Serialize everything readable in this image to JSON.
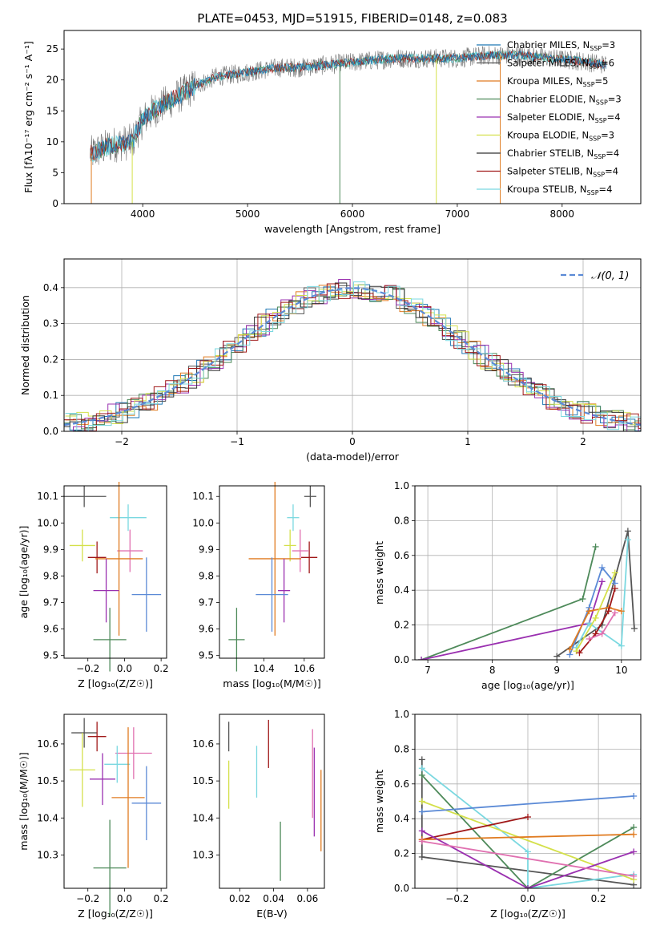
{
  "figure": {
    "title": "PLATE=0453, MJD=51915, FIBERID=0148, z=0.083"
  },
  "chart_data": [
    {
      "id": "spectrum",
      "type": "line",
      "xlabel": "wavelength [Angstrom, rest frame]",
      "ylabel": "Flux [fλ10⁻¹⁷ erg cm⁻² s⁻¹ A⁻¹]",
      "xlim": [
        3250,
        8750
      ],
      "ylim": [
        0,
        28
      ],
      "xticks": [
        4000,
        5000,
        6000,
        7000,
        8000
      ],
      "yticks": [
        0,
        5,
        10,
        15,
        20,
        25
      ],
      "grid": false,
      "legend_position": "top-right",
      "series": [
        {
          "name": "Chabrier MILES, N_SSP=3",
          "color": "#1f77b4"
        },
        {
          "name": "Salpeter MILES, N_SSP=6",
          "color": "#555555"
        },
        {
          "name": "Kroupa MILES, N_SSP=5",
          "color": "#e07b20"
        },
        {
          "name": "Chabrier ELODIE, N_SSP=3",
          "color": "#4e8a5a"
        },
        {
          "name": "Salpeter ELODIE, N_SSP=4",
          "color": "#9a30b0"
        },
        {
          "name": "Kroupa ELODIE, N_SSP=3",
          "color": "#d4e04a"
        },
        {
          "name": "Chabrier STELIB, N_SSP=4",
          "color": "#333333"
        },
        {
          "name": "Salpeter STELIB, N_SSP=4",
          "color": "#a01818"
        },
        {
          "name": "Kroupa STELIB, N_SSP=4",
          "color": "#7ad8e0"
        }
      ],
      "continuum": {
        "x": [
          3500,
          3700,
          3900,
          4000,
          4100,
          4300,
          4500,
          4700,
          4900,
          5100,
          5300,
          5500,
          5800,
          6100,
          6400,
          6700,
          7000,
          7300,
          7600,
          7900,
          8200,
          8400
        ],
        "y": [
          8,
          9.5,
          10,
          13.5,
          15,
          17,
          19,
          20.5,
          21,
          21.5,
          22,
          22,
          22.5,
          23,
          23.5,
          23.5,
          23.5,
          24,
          24,
          23.5,
          23,
          22.5
        ]
      }
    },
    {
      "id": "residuals",
      "type": "histogram",
      "xlabel": "(data-model)/error",
      "ylabel": "Normed distribution",
      "xlim": [
        -2.5,
        2.5
      ],
      "ylim": [
        0,
        0.48
      ],
      "xticks": [
        -2,
        -1,
        0,
        1,
        2
      ],
      "yticks": [
        0.0,
        0.1,
        0.2,
        0.3,
        0.4
      ],
      "grid": true,
      "legend": "𝒩(0, 1)",
      "legend_position": "top-right",
      "bin_width": 0.1,
      "reference_curve": {
        "name": "𝒩(0, 1)",
        "mean": 0,
        "sigma": 1,
        "color": "#5b8ad6"
      }
    },
    {
      "id": "age-vs-Z",
      "type": "scatter",
      "xlabel": "Z [log₁₀(Z/Z☉)]",
      "ylabel": "age  [log₁₀(age/yr)]",
      "xlim": [
        -0.33,
        0.23
      ],
      "ylim": [
        9.49,
        10.14
      ],
      "xticks": [
        -0.2,
        0.0,
        0.2
      ],
      "yticks": [
        9.5,
        9.6,
        9.7,
        9.8,
        9.9,
        10.0,
        10.1
      ],
      "points": [
        {
          "x": -0.22,
          "y": 10.1,
          "xerr": 0.12,
          "yerr": 0.04,
          "color": "#555555"
        },
        {
          "x": 0.02,
          "y": 10.02,
          "xerr": 0.1,
          "yerr": 0.05,
          "color": "#7ad8e0"
        },
        {
          "x": -0.23,
          "y": 9.915,
          "xerr": 0.07,
          "yerr": 0.06,
          "color": "#d4e04a"
        },
        {
          "x": 0.03,
          "y": 9.895,
          "xerr": 0.07,
          "yerr": 0.08,
          "color": "#e070b0"
        },
        {
          "x": -0.15,
          "y": 9.87,
          "xerr": 0.05,
          "yerr": 0.06,
          "color": "#a01818"
        },
        {
          "x": -0.03,
          "y": 9.865,
          "xerr": 0.13,
          "yerr": 0.29,
          "color": "#e07b20"
        },
        {
          "x": -0.1,
          "y": 9.745,
          "xerr": 0.07,
          "yerr": 0.12,
          "color": "#9a30b0"
        },
        {
          "x": 0.12,
          "y": 9.73,
          "xerr": 0.08,
          "yerr": 0.14,
          "color": "#5b8ad6"
        },
        {
          "x": -0.08,
          "y": 9.56,
          "xerr": 0.09,
          "yerr": 0.12,
          "color": "#4e8a5a"
        }
      ]
    },
    {
      "id": "age-vs-mass",
      "type": "scatter",
      "xlabel": "mass [log₁₀(M/M☉)]",
      "ylabel": "",
      "xlim": [
        10.18,
        10.7
      ],
      "ylim": [
        9.49,
        10.14
      ],
      "xticks": [
        10.4,
        10.6
      ],
      "yticks": [
        9.5,
        9.6,
        9.7,
        9.8,
        9.9,
        10.0,
        10.1
      ],
      "points": [
        {
          "x": 10.63,
          "y": 10.1,
          "xerr": 0.03,
          "yerr": 0.04,
          "color": "#555555"
        },
        {
          "x": 10.545,
          "y": 10.02,
          "xerr": 0.03,
          "yerr": 0.05,
          "color": "#7ad8e0"
        },
        {
          "x": 10.53,
          "y": 9.915,
          "xerr": 0.03,
          "yerr": 0.06,
          "color": "#d4e04a"
        },
        {
          "x": 10.58,
          "y": 9.895,
          "xerr": 0.04,
          "yerr": 0.08,
          "color": "#e070b0"
        },
        {
          "x": 10.625,
          "y": 9.87,
          "xerr": 0.04,
          "yerr": 0.06,
          "color": "#a01818"
        },
        {
          "x": 10.455,
          "y": 9.865,
          "xerr": 0.13,
          "yerr": 0.29,
          "color": "#e07b20"
        },
        {
          "x": 10.5,
          "y": 9.745,
          "xerr": 0.03,
          "yerr": 0.12,
          "color": "#9a30b0"
        },
        {
          "x": 10.44,
          "y": 9.73,
          "xerr": 0.08,
          "yerr": 0.14,
          "color": "#5b8ad6"
        },
        {
          "x": 10.265,
          "y": 9.56,
          "xerr": 0.04,
          "yerr": 0.12,
          "color": "#4e8a5a"
        }
      ]
    },
    {
      "id": "weight-vs-age",
      "type": "line",
      "xlabel": "age  [log₁₀(age/yr)]",
      "ylabel": "mass weight",
      "xlim": [
        6.8,
        10.3
      ],
      "ylim": [
        0,
        1.0
      ],
      "xticks": [
        7,
        8,
        9,
        10
      ],
      "yticks": [
        0.0,
        0.2,
        0.4,
        0.6,
        0.8,
        1.0
      ],
      "grid": true,
      "series": [
        {
          "color": "#4e8a5a",
          "points": [
            [
              6.9,
              0.0
            ],
            [
              9.4,
              0.35
            ],
            [
              9.6,
              0.65
            ]
          ]
        },
        {
          "color": "#9a30b0",
          "points": [
            [
              6.9,
              0.0
            ],
            [
              9.5,
              0.21
            ],
            [
              9.7,
              0.45
            ]
          ]
        },
        {
          "color": "#555555",
          "points": [
            [
              9.0,
              0.02
            ],
            [
              9.7,
              0.2
            ],
            [
              10.1,
              0.74
            ],
            [
              10.2,
              0.18
            ]
          ]
        },
        {
          "color": "#7ad8e0",
          "points": [
            [
              9.3,
              0.07
            ],
            [
              9.5,
              0.21
            ],
            [
              10.0,
              0.08
            ],
            [
              10.1,
              0.69
            ]
          ]
        },
        {
          "color": "#5b8ad6",
          "points": [
            [
              9.2,
              0.03
            ],
            [
              9.5,
              0.3
            ],
            [
              9.7,
              0.53
            ],
            [
              9.9,
              0.44
            ]
          ]
        },
        {
          "color": "#e07b20",
          "points": [
            [
              9.2,
              0.06
            ],
            [
              9.5,
              0.28
            ],
            [
              9.8,
              0.3
            ],
            [
              10.0,
              0.28
            ]
          ]
        },
        {
          "color": "#d4e04a",
          "points": [
            [
              9.3,
              0.05
            ],
            [
              9.6,
              0.24
            ],
            [
              9.9,
              0.5
            ]
          ]
        },
        {
          "color": "#a01818",
          "points": [
            [
              9.35,
              0.04
            ],
            [
              9.6,
              0.15
            ],
            [
              9.8,
              0.28
            ],
            [
              9.9,
              0.41
            ]
          ]
        },
        {
          "color": "#e070b0",
          "points": [
            [
              9.5,
              0.12
            ],
            [
              9.7,
              0.15
            ],
            [
              9.9,
              0.27
            ]
          ]
        }
      ]
    },
    {
      "id": "mass-vs-Z",
      "type": "scatter",
      "xlabel": "Z [log₁₀(Z/Z☉)]",
      "ylabel": "mass [log₁₀(M/M☉)]",
      "xlim": [
        -0.33,
        0.23
      ],
      "ylim": [
        10.21,
        10.68
      ],
      "xticks": [
        -0.2,
        0.0,
        0.2
      ],
      "yticks": [
        10.3,
        10.4,
        10.5,
        10.6
      ],
      "points": [
        {
          "x": -0.22,
          "y": 10.63,
          "xerr": 0.07,
          "yerr": 0.04,
          "color": "#555555"
        },
        {
          "x": -0.15,
          "y": 10.62,
          "xerr": 0.05,
          "yerr": 0.04,
          "color": "#a01818"
        },
        {
          "x": 0.05,
          "y": 10.575,
          "xerr": 0.1,
          "yerr": 0.07,
          "color": "#e070b0"
        },
        {
          "x": -0.04,
          "y": 10.545,
          "xerr": 0.07,
          "yerr": 0.05,
          "color": "#7ad8e0"
        },
        {
          "x": -0.23,
          "y": 10.53,
          "xerr": 0.07,
          "yerr": 0.1,
          "color": "#d4e04a"
        },
        {
          "x": -0.12,
          "y": 10.505,
          "xerr": 0.07,
          "yerr": 0.07,
          "color": "#9a30b0"
        },
        {
          "x": 0.02,
          "y": 10.455,
          "xerr": 0.09,
          "yerr": 0.19,
          "color": "#e07b20"
        },
        {
          "x": 0.12,
          "y": 10.44,
          "xerr": 0.08,
          "yerr": 0.1,
          "color": "#5b8ad6"
        },
        {
          "x": -0.08,
          "y": 10.265,
          "xerr": 0.09,
          "yerr": 0.13,
          "color": "#4e8a5a"
        }
      ]
    },
    {
      "id": "mass-vs-ebv",
      "type": "scatter",
      "xlabel": "E(B-V)",
      "ylabel": "",
      "xlim": [
        0.008,
        0.07
      ],
      "ylim": [
        10.21,
        10.68
      ],
      "xticks": [
        0.02,
        0.04,
        0.06
      ],
      "yticks": [
        10.3,
        10.4,
        10.5,
        10.6
      ],
      "points": [
        {
          "x": 0.0135,
          "y": 10.62,
          "yerr": 0.04,
          "color": "#555555"
        },
        {
          "x": 0.0135,
          "y": 10.49,
          "yerr": 0.065,
          "color": "#d4e04a"
        },
        {
          "x": 0.03,
          "y": 10.525,
          "yerr": 0.07,
          "color": "#7ad8e0"
        },
        {
          "x": 0.037,
          "y": 10.6,
          "yerr": 0.065,
          "color": "#a01818"
        },
        {
          "x": 0.044,
          "y": 10.31,
          "yerr": 0.08,
          "color": "#4e8a5a"
        },
        {
          "x": 0.063,
          "y": 10.52,
          "yerr": 0.12,
          "color": "#e070b0"
        },
        {
          "x": 0.064,
          "y": 10.47,
          "yerr": 0.12,
          "color": "#9a30b0"
        },
        {
          "x": 0.068,
          "y": 10.42,
          "yerr": 0.11,
          "color": "#e07b20"
        }
      ]
    },
    {
      "id": "weight-vs-Z",
      "type": "line",
      "xlabel": "Z [log₁₀(Z/Z☉)]",
      "ylabel": "mass weight",
      "xlim": [
        -0.32,
        0.32
      ],
      "ylim": [
        0,
        1.0
      ],
      "xticks": [
        -0.2,
        0.0,
        0.2
      ],
      "yticks": [
        0.0,
        0.2,
        0.4,
        0.6,
        0.8,
        1.0
      ],
      "grid": true,
      "series": [
        {
          "color": "#555555",
          "points": [
            [
              -0.3,
              0.74
            ],
            [
              -0.3,
              0.18
            ],
            [
              0.3,
              0.02
            ]
          ]
        },
        {
          "color": "#7ad8e0",
          "points": [
            [
              -0.3,
              0.69
            ],
            [
              0.0,
              0.21
            ],
            [
              0.0,
              0.0
            ],
            [
              0.3,
              0.08
            ]
          ]
        },
        {
          "color": "#4e8a5a",
          "points": [
            [
              -0.3,
              0.65
            ],
            [
              0.0,
              0.0
            ],
            [
              0.3,
              0.35
            ]
          ]
        },
        {
          "color": "#d4e04a",
          "points": [
            [
              -0.3,
              0.5
            ],
            [
              0.3,
              0.05
            ]
          ]
        },
        {
          "color": "#5b8ad6",
          "points": [
            [
              -0.3,
              0.44
            ],
            [
              0.3,
              0.53
            ]
          ]
        },
        {
          "color": "#a01818",
          "points": [
            [
              -0.3,
              0.28
            ],
            [
              0.0,
              0.41
            ]
          ]
        },
        {
          "color": "#e07b20",
          "points": [
            [
              -0.3,
              0.28
            ],
            [
              0.3,
              0.31
            ]
          ]
        },
        {
          "color": "#9a30b0",
          "points": [
            [
              -0.3,
              0.33
            ],
            [
              0.0,
              0.0
            ],
            [
              0.3,
              0.21
            ]
          ]
        },
        {
          "color": "#e070b0",
          "points": [
            [
              -0.3,
              0.27
            ],
            [
              0.3,
              0.07
            ]
          ]
        }
      ]
    }
  ]
}
